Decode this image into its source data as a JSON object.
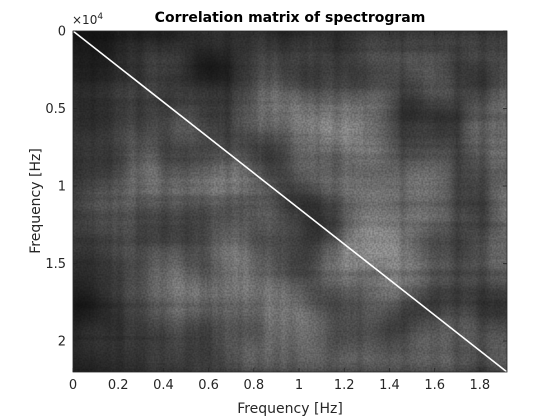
{
  "chart_data": {
    "type": "heatmap",
    "title": "Correlation matrix of spectrogram",
    "xlabel": "Frequency [Hz]",
    "ylabel": "Frequency [Hz]",
    "colormap": "gray",
    "xlim": [
      0,
      1.92
    ],
    "ylim": [
      0,
      2.2
    ],
    "y_reversed": true,
    "x_ticks": [
      {
        "value": 0,
        "label": "0"
      },
      {
        "value": 0.2,
        "label": "0.2"
      },
      {
        "value": 0.4,
        "label": "0.4"
      },
      {
        "value": 0.6,
        "label": "0.6"
      },
      {
        "value": 0.8,
        "label": "0.8"
      },
      {
        "value": 1.0,
        "label": "1"
      },
      {
        "value": 1.2,
        "label": "1.2"
      },
      {
        "value": 1.4,
        "label": "1.4"
      },
      {
        "value": 1.6,
        "label": "1.6"
      },
      {
        "value": 1.8,
        "label": "1.8"
      }
    ],
    "y_ticks": [
      {
        "value": 0,
        "label": "0"
      },
      {
        "value": 0.5,
        "label": "0.5"
      },
      {
        "value": 1.0,
        "label": "1"
      },
      {
        "value": 1.5,
        "label": "1.5"
      },
      {
        "value": 2.0,
        "label": "2"
      }
    ],
    "y_exponent": {
      "base": "×10",
      "power": "4"
    },
    "diagonal": {
      "from": [
        0,
        0
      ],
      "to": [
        1.92,
        2.2
      ],
      "color": "#ffffff"
    },
    "grid": false,
    "legend": "none"
  }
}
